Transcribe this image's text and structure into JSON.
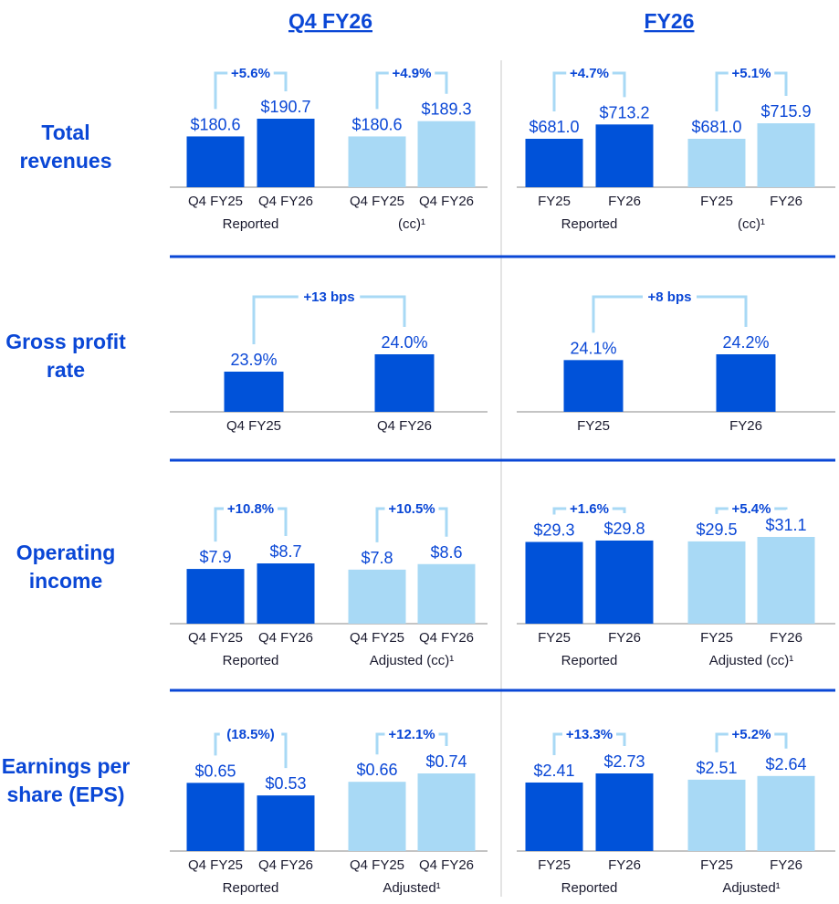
{
  "colors": {
    "dark": "#0052d9",
    "light": "#a8d9f5",
    "accent": "#0a47d6",
    "bracket": "#a8d9f5",
    "axis": "#8a8a8a",
    "divider": "#0a47d6",
    "vline": "#c8c8c8"
  },
  "headers": {
    "left": "Q4 FY26",
    "right": "FY26"
  },
  "chart_data": {
    "type": "bar",
    "title": "",
    "rows": [
      {
        "label": [
          "Total",
          "revenues"
        ],
        "panels": [
          {
            "groups": [
              {
                "label": "Reported",
                "change": "+5.6%",
                "shade": "dark",
                "bars": [
                  {
                    "cat": "Q4 FY25",
                    "value": 180.6,
                    "text": "$180.6"
                  },
                  {
                    "cat": "Q4 FY26",
                    "value": 190.7,
                    "text": "$190.7"
                  }
                ]
              },
              {
                "label": "(cc)¹",
                "change": "+4.9%",
                "shade": "light",
                "bars": [
                  {
                    "cat": "Q4 FY25",
                    "value": 180.6,
                    "text": "$180.6"
                  },
                  {
                    "cat": "Q4 FY26",
                    "value": 189.3,
                    "text": "$189.3"
                  }
                ]
              }
            ]
          },
          {
            "groups": [
              {
                "label": "Reported",
                "change": "+4.7%",
                "shade": "dark",
                "bars": [
                  {
                    "cat": "FY25",
                    "value": 681.0,
                    "text": "$681.0"
                  },
                  {
                    "cat": "FY26",
                    "value": 713.2,
                    "text": "$713.2"
                  }
                ]
              },
              {
                "label": "(cc)¹",
                "change": "+5.1%",
                "shade": "light",
                "bars": [
                  {
                    "cat": "FY25",
                    "value": 681.0,
                    "text": "$681.0"
                  },
                  {
                    "cat": "FY26",
                    "value": 715.9,
                    "text": "$715.9"
                  }
                ]
              }
            ]
          }
        ]
      },
      {
        "label": [
          "Gross profit",
          "rate"
        ],
        "panels": [
          {
            "groups": [
              {
                "label": "",
                "change": "+13 bps",
                "shade": "dark",
                "bars": [
                  {
                    "cat": "Q4 FY25",
                    "value": 23.9,
                    "text": "23.9%"
                  },
                  {
                    "cat": "Q4 FY26",
                    "value": 24.0,
                    "text": "24.0%"
                  }
                ]
              }
            ]
          },
          {
            "groups": [
              {
                "label": "",
                "change": "+8 bps",
                "shade": "dark",
                "bars": [
                  {
                    "cat": "FY25",
                    "value": 24.1,
                    "text": "24.1%"
                  },
                  {
                    "cat": "FY26",
                    "value": 24.2,
                    "text": "24.2%"
                  }
                ]
              }
            ]
          }
        ]
      },
      {
        "label": [
          "Operating",
          "income"
        ],
        "panels": [
          {
            "groups": [
              {
                "label": "Reported",
                "change": "+10.8%",
                "shade": "dark",
                "bars": [
                  {
                    "cat": "Q4 FY25",
                    "value": 7.9,
                    "text": "$7.9"
                  },
                  {
                    "cat": "Q4 FY26",
                    "value": 8.7,
                    "text": "$8.7"
                  }
                ]
              },
              {
                "label": "Adjusted (cc)¹",
                "change": "+10.5%",
                "shade": "light",
                "bars": [
                  {
                    "cat": "Q4 FY25",
                    "value": 7.8,
                    "text": "$7.8"
                  },
                  {
                    "cat": "Q4 FY26",
                    "value": 8.6,
                    "text": "$8.6"
                  }
                ]
              }
            ]
          },
          {
            "groups": [
              {
                "label": "Reported",
                "change": "+1.6%",
                "shade": "dark",
                "bars": [
                  {
                    "cat": "FY25",
                    "value": 29.3,
                    "text": "$29.3"
                  },
                  {
                    "cat": "FY26",
                    "value": 29.8,
                    "text": "$29.8"
                  }
                ]
              },
              {
                "label": "Adjusted (cc)¹",
                "change": "+5.4%",
                "shade": "light",
                "bars": [
                  {
                    "cat": "FY25",
                    "value": 29.5,
                    "text": "$29.5"
                  },
                  {
                    "cat": "FY26",
                    "value": 31.1,
                    "text": "$31.1"
                  }
                ]
              }
            ]
          }
        ]
      },
      {
        "label": [
          "Earnings per",
          "share (EPS)"
        ],
        "panels": [
          {
            "groups": [
              {
                "label": "Reported",
                "change": "(18.5%)",
                "shade": "dark",
                "bars": [
                  {
                    "cat": "Q4 FY25",
                    "value": 0.65,
                    "text": "$0.65"
                  },
                  {
                    "cat": "Q4 FY26",
                    "value": 0.53,
                    "text": "$0.53"
                  }
                ]
              },
              {
                "label": "Adjusted¹",
                "change": "+12.1%",
                "shade": "light",
                "bars": [
                  {
                    "cat": "Q4 FY25",
                    "value": 0.66,
                    "text": "$0.66"
                  },
                  {
                    "cat": "Q4 FY26",
                    "value": 0.74,
                    "text": "$0.74"
                  }
                ]
              }
            ]
          },
          {
            "groups": [
              {
                "label": "Reported",
                "change": "+13.3%",
                "shade": "dark",
                "bars": [
                  {
                    "cat": "FY25",
                    "value": 2.41,
                    "text": "$2.41"
                  },
                  {
                    "cat": "FY26",
                    "value": 2.73,
                    "text": "$2.73"
                  }
                ]
              },
              {
                "label": "Adjusted¹",
                "change": "+5.2%",
                "shade": "light",
                "bars": [
                  {
                    "cat": "FY25",
                    "value": 2.51,
                    "text": "$2.51"
                  },
                  {
                    "cat": "FY26",
                    "value": 2.64,
                    "text": "$2.64"
                  }
                ]
              }
            ]
          }
        ]
      }
    ]
  }
}
